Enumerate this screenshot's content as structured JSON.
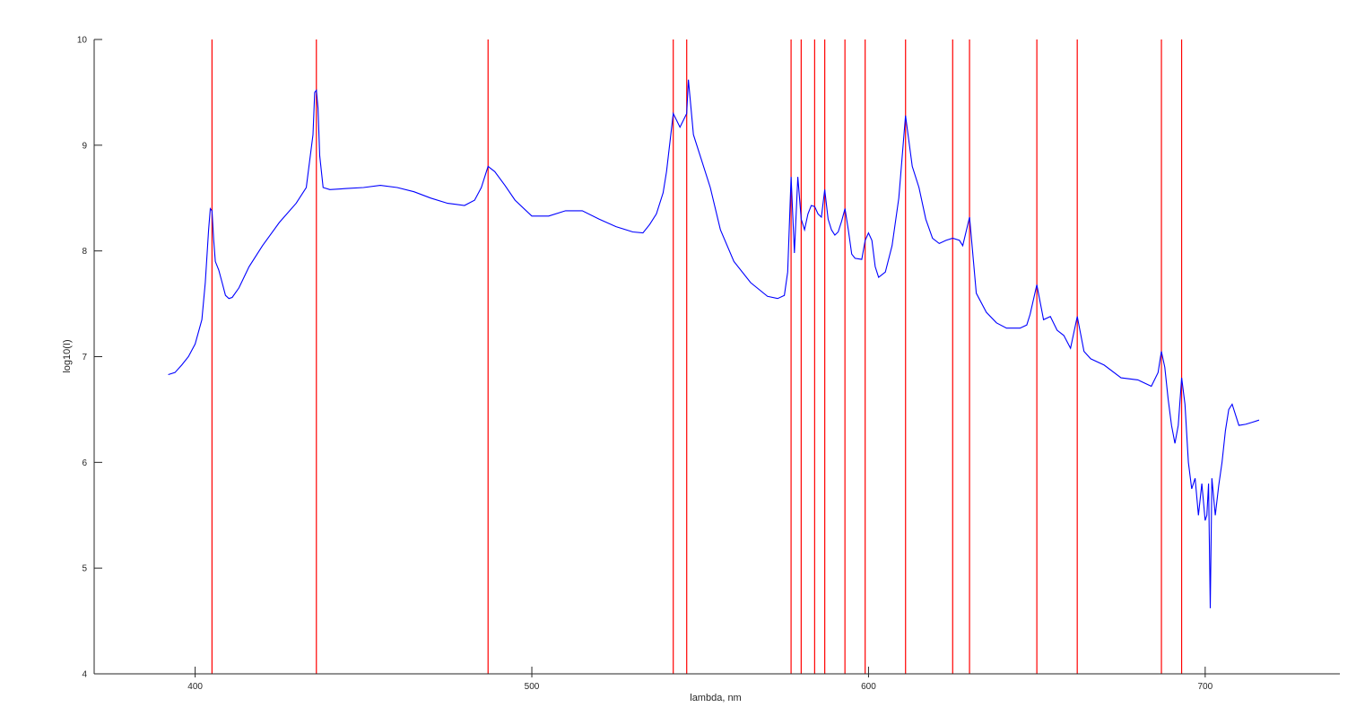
{
  "chart_data": {
    "type": "line",
    "title": "",
    "xlabel": "lambda, nm",
    "ylabel": "log10(I)",
    "xlim": [
      370,
      740
    ],
    "ylim": [
      4,
      10
    ],
    "xticks": [
      400,
      500,
      600,
      700
    ],
    "yticks": [
      4,
      5,
      6,
      7,
      8,
      9,
      10
    ],
    "grid": false,
    "legend": "none",
    "colors": {
      "series": "#0000ff",
      "lines": "#ff0000",
      "axes": "#262626"
    },
    "vertical_lines": [
      405,
      436,
      487,
      542,
      546,
      577,
      580,
      584,
      587,
      593,
      599,
      611,
      625,
      630,
      650,
      662,
      687,
      693
    ],
    "series": [
      {
        "x": [
          392,
          394,
          396,
          398,
          400,
          402,
          403,
          404,
          404.5,
          405,
          405.5,
          406,
          407,
          408,
          409,
          410,
          411,
          413,
          416,
          420,
          425,
          430,
          433,
          435,
          435.5,
          436,
          436.5,
          437,
          438,
          440,
          445,
          450,
          455,
          460,
          465,
          470,
          475,
          480,
          483,
          485,
          487,
          489,
          492,
          495,
          500,
          505,
          510,
          515,
          520,
          525,
          530,
          533,
          535,
          537,
          539,
          540,
          542,
          544,
          546,
          546.5,
          548,
          550,
          553,
          556,
          560,
          565,
          570,
          573,
          575,
          576,
          577,
          578,
          579,
          580,
          581,
          582,
          583,
          584,
          585,
          586,
          587,
          588,
          589,
          590,
          591,
          592,
          593,
          594,
          595,
          596,
          598,
          599,
          600,
          601,
          602,
          603,
          605,
          607,
          609,
          611,
          613,
          615,
          617,
          619,
          621,
          623,
          625,
          627,
          628,
          630,
          632,
          635,
          638,
          641,
          645,
          647,
          648,
          650,
          652,
          654,
          656,
          658,
          660,
          662,
          664,
          666,
          670,
          675,
          680,
          684,
          686,
          687,
          688,
          689,
          690,
          691,
          692,
          693,
          694,
          695,
          696,
          697,
          698,
          699,
          700,
          700.5,
          701,
          701.5,
          702,
          703,
          704,
          705,
          706,
          707,
          708,
          710,
          712,
          714,
          716
        ],
        "y": [
          6.83,
          6.85,
          6.92,
          7.0,
          7.12,
          7.35,
          7.7,
          8.2,
          8.4,
          8.38,
          8.1,
          7.9,
          7.82,
          7.7,
          7.58,
          7.55,
          7.56,
          7.65,
          7.85,
          8.05,
          8.27,
          8.45,
          8.6,
          9.1,
          9.5,
          9.52,
          9.35,
          8.9,
          8.6,
          8.58,
          8.59,
          8.6,
          8.62,
          8.6,
          8.56,
          8.5,
          8.45,
          8.43,
          8.48,
          8.6,
          8.8,
          8.75,
          8.62,
          8.48,
          8.33,
          8.33,
          8.38,
          8.38,
          8.3,
          8.23,
          8.18,
          8.17,
          8.25,
          8.35,
          8.55,
          8.75,
          9.3,
          9.17,
          9.3,
          9.62,
          9.1,
          8.9,
          8.6,
          8.2,
          7.9,
          7.7,
          7.57,
          7.55,
          7.58,
          7.8,
          8.7,
          7.98,
          8.7,
          8.3,
          8.2,
          8.35,
          8.43,
          8.42,
          8.35,
          8.32,
          8.58,
          8.3,
          8.2,
          8.15,
          8.18,
          8.28,
          8.4,
          8.2,
          7.97,
          7.93,
          7.92,
          8.1,
          8.17,
          8.1,
          7.85,
          7.75,
          7.8,
          8.05,
          8.5,
          9.28,
          8.8,
          8.6,
          8.3,
          8.12,
          8.07,
          8.1,
          8.12,
          8.1,
          8.05,
          8.32,
          7.6,
          7.42,
          7.32,
          7.27,
          7.27,
          7.3,
          7.4,
          7.68,
          7.35,
          7.38,
          7.25,
          7.2,
          7.08,
          7.38,
          7.05,
          6.98,
          6.92,
          6.8,
          6.78,
          6.72,
          6.85,
          7.05,
          6.9,
          6.6,
          6.35,
          6.18,
          6.35,
          6.8,
          6.55,
          6.0,
          5.75,
          5.85,
          5.5,
          5.8,
          5.45,
          5.5,
          5.8,
          4.62,
          5.85,
          5.5,
          5.78,
          6.0,
          6.3,
          6.5,
          6.55,
          6.35,
          6.36,
          6.38,
          6.4
        ]
      }
    ]
  }
}
